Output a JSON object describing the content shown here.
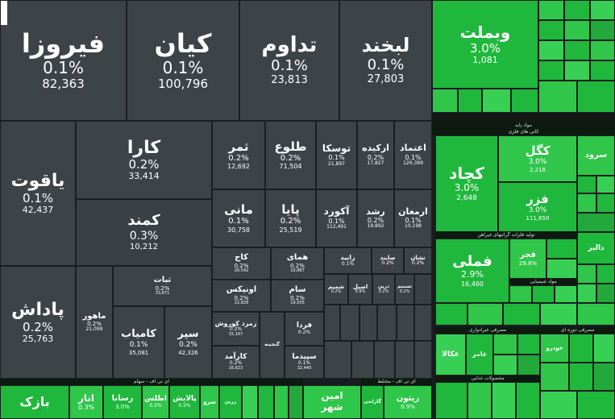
{
  "theme": {
    "dark": "#3d4447",
    "green": "#1fb83d",
    "separator": "#1b1e1f"
  },
  "headers": {
    "h_mavad": "مواد پایه",
    "h_kani": "کانی های فلزی",
    "h_flzat": "تولید فلزات گرانبهای غیرآهن",
    "h_shimi": "مواد شیمیایی",
    "h_masraf_gheir": "مصرفی غیرادواری",
    "h_masraf_dore": "مصرفی دوره ای",
    "h_etf": "ای تی اف - سهام",
    "h_etf2": "ای تی اف - مختلط",
    "h_mahsool": "محصولات غذایی"
  },
  "tiles": {
    "firouza": {
      "name": "فیروزا",
      "pct": "0.1%",
      "value": "82,363"
    },
    "kian": {
      "name": "کیان",
      "pct": "0.1%",
      "value": "100,796"
    },
    "tadavom": {
      "name": "تداوم",
      "pct": "0.1%",
      "value": "23,813"
    },
    "labkhand": {
      "name": "لبخند",
      "pct": "0.1%",
      "value": "27,803"
    },
    "vebmellat": {
      "name": "وبملت",
      "pct": "3.0%",
      "value": "1,081"
    },
    "yaghut": {
      "name": "یاقوت",
      "pct": "0.1%",
      "value": "42,437"
    },
    "kara": {
      "name": "کارا",
      "pct": "0.2%",
      "value": "33,414"
    },
    "kamand": {
      "name": "کمند",
      "pct": "0.3%",
      "value": "10,212"
    },
    "samar": {
      "name": "ثمر",
      "pct": "0.2%",
      "value": "12,692"
    },
    "tolou": {
      "name": "طلوع",
      "pct": "0.2%",
      "value": "71,504"
    },
    "touska": {
      "name": "توسکا",
      "pct": "0.1%",
      "value": "21,897"
    },
    "arkide": {
      "name": "ارکیده",
      "pct": "0.2%",
      "value": "17,827"
    },
    "etemad": {
      "name": "اعتماد",
      "pct": "0.1%",
      "value": "126,399"
    },
    "mani": {
      "name": "مانی",
      "pct": "0.1%",
      "value": "30,758"
    },
    "paya": {
      "name": "پایا",
      "pct": "0.2%",
      "value": "25,519"
    },
    "akord": {
      "name": "آکورد",
      "pct": "0.1%",
      "value": "112,491"
    },
    "roshd": {
      "name": "رشد",
      "pct": "0.2%",
      "value": "19,892"
    },
    "armaghan": {
      "name": "ارمغان",
      "pct": "0.1%",
      "value": "10,198"
    },
    "kaj": {
      "name": "کاج",
      "pct": "0.2%",
      "value": "26,542"
    },
    "homay": {
      "name": "همای",
      "pct": "0.2%",
      "value": "10,887"
    },
    "raid": {
      "name": "رایید",
      "pct": "0.1%",
      "value": ""
    },
    "sayan": {
      "name": "صایند",
      "pct": "0.2%",
      "value": ""
    },
    "neshan": {
      "name": "نشان",
      "pct": "0.2%",
      "value": ""
    },
    "sabat": {
      "name": "ثبات",
      "pct": "0.2%",
      "value": "33,871"
    },
    "onix": {
      "name": "اونیکس",
      "pct": "0.2%",
      "value": "22,828"
    },
    "sam": {
      "name": "سام",
      "pct": "0.2%",
      "value": "19,505"
    },
    "shamim": {
      "name": "شمیم",
      "pct": "0.2%",
      "value": ""
    },
    "asil": {
      "name": "اصیل",
      "pct": "0.9%",
      "value": ""
    },
    "dorin": {
      "name": "درین",
      "pct": "0.2%",
      "value": ""
    },
    "tasnim": {
      "name": "تسنیم",
      "pct": "0.2%",
      "value": ""
    },
    "padash": {
      "name": "پاداش",
      "pct": "0.2%",
      "value": "25,763"
    },
    "maher": {
      "name": "ماهور",
      "pct": "0.2%",
      "value": "21,099"
    },
    "kamyab": {
      "name": "کامیاب",
      "pct": "0.1%",
      "value": "35,081"
    },
    "separ": {
      "name": "سپر",
      "pct": "0.2%",
      "value": "42,326"
    },
    "zomorod": {
      "name": "زمرد کوروش",
      "pct": "0.2%",
      "value": "15,167"
    },
    "ganjine": {
      "name": "گنجینه",
      "pct": "",
      "value": ""
    },
    "farda": {
      "name": "فردا",
      "pct": "0.2%",
      "value": ""
    },
    "karamad": {
      "name": "کارآمد",
      "pct": "0.2%",
      "value": "16,623"
    },
    "sepideh": {
      "name": "سپیدما",
      "pct": "0.1%",
      "value": "32,440"
    },
    "kagd": {
      "name": "کچاد",
      "pct": "3.0%",
      "value": "2,648"
    },
    "kgol": {
      "name": "کگل",
      "pct": "3.0%",
      "value": "2,218"
    },
    "faraz": {
      "name": "فزر",
      "pct": "3.0%",
      "value": "111,650"
    },
    "sarod": {
      "name": "سرود",
      "pct": "",
      "value": ""
    },
    "fameli": {
      "name": "فملی",
      "pct": "2.9%",
      "value": "16,460"
    },
    "fajr": {
      "name": "فجر",
      "pct": "29.8%",
      "value": ""
    },
    "dalbar": {
      "name": "دالبر",
      "pct": "",
      "value": ""
    },
    "aknar": {
      "name": "انار",
      "pct": "0.3%",
      "value": ""
    },
    "rasana": {
      "name": "رسانا",
      "pct": "3.0%",
      "value": ""
    },
    "atlas": {
      "name": "اطلس",
      "pct": "0.2%",
      "value": ""
    },
    "balaish": {
      "name": "پالایش",
      "pct": "0.5%",
      "value": ""
    },
    "sarv": {
      "name": "سرو",
      "pct": "",
      "value": ""
    },
    "zarin": {
      "name": "زرین",
      "pct": "",
      "value": ""
    },
    "amin": {
      "name": "امین",
      "pct": "",
      "value": ""
    },
    "shahr": {
      "name": "شهر",
      "pct": "",
      "value": ""
    },
    "zeitun": {
      "name": "زیتون",
      "pct": "0.9%",
      "value": ""
    },
    "garanti": {
      "name": "گارانتی",
      "pct": "",
      "value": ""
    },
    "bazak": {
      "name": "بازک",
      "pct": "",
      "value": ""
    },
    "aknakol": {
      "name": "عکالا",
      "pct": "",
      "value": ""
    },
    "ghamar": {
      "name": "غامر",
      "pct": "",
      "value": ""
    },
    "khodro": {
      "name": "خودرو",
      "pct": "",
      "value": ""
    }
  }
}
